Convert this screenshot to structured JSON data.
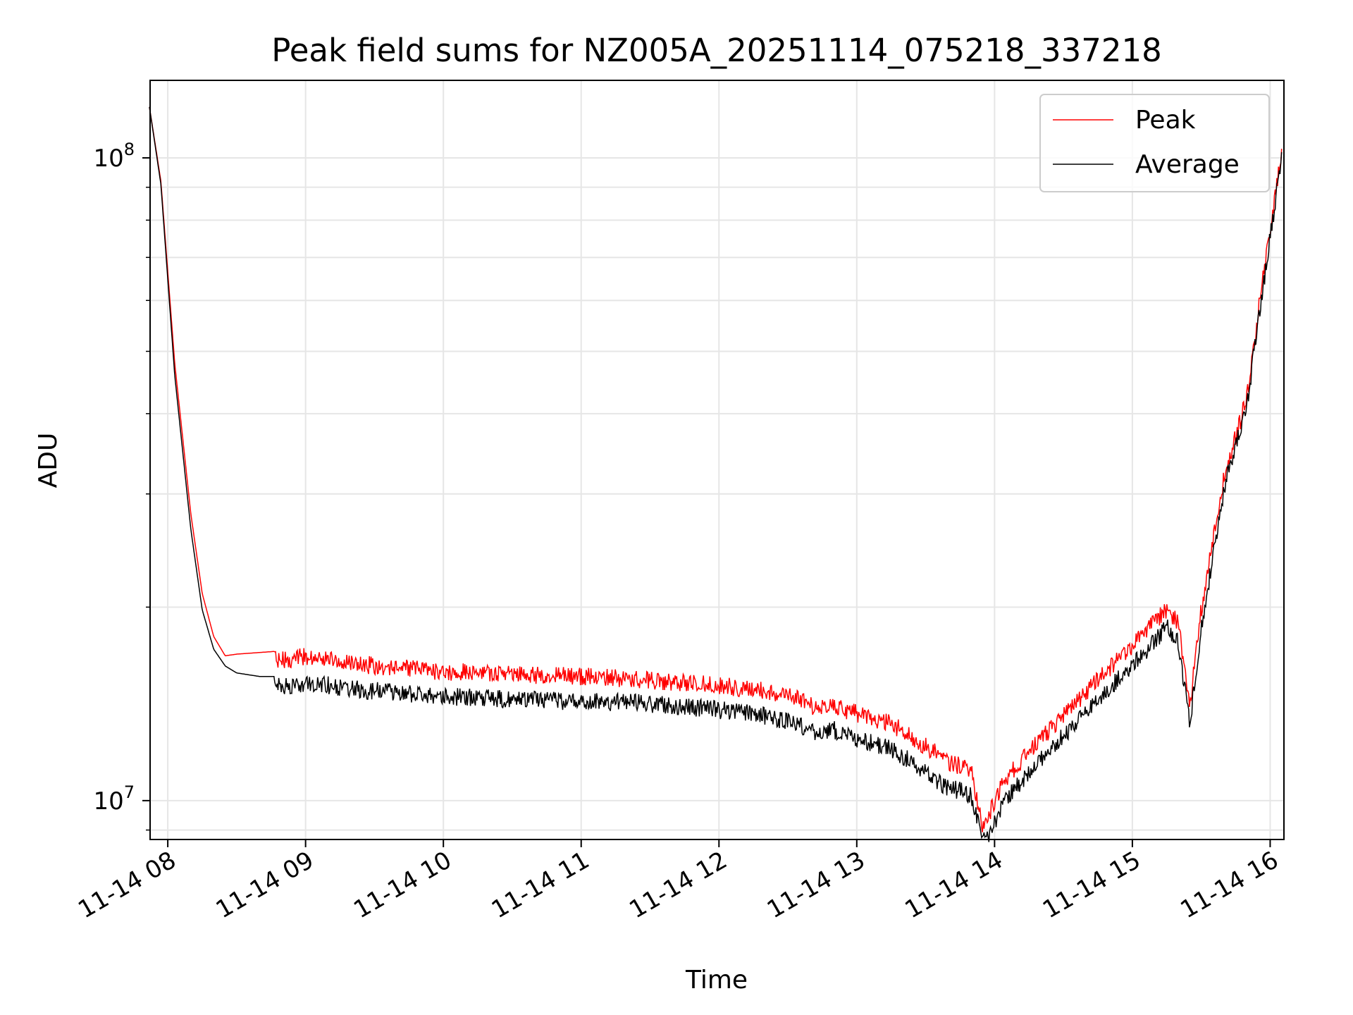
{
  "chart_data": {
    "type": "line",
    "title": "Peak field sums for NZ005A_20251114_075218_337218",
    "xlabel": "Time",
    "ylabel": "ADU",
    "yscale": "log",
    "xlim": [
      "2025-11-14T07:52:18",
      "2025-11-14T16:06:00"
    ],
    "ylim": [
      8700000,
      132000000
    ],
    "grid": true,
    "legend_position": "top-right",
    "x_ticks": [
      {
        "value": "2025-11-14T08:00",
        "label": "11-14 08"
      },
      {
        "value": "2025-11-14T09:00",
        "label": "11-14 09"
      },
      {
        "value": "2025-11-14T10:00",
        "label": "11-14 10"
      },
      {
        "value": "2025-11-14T11:00",
        "label": "11-14 11"
      },
      {
        "value": "2025-11-14T12:00",
        "label": "11-14 12"
      },
      {
        "value": "2025-11-14T13:00",
        "label": "11-14 13"
      },
      {
        "value": "2025-11-14T14:00",
        "label": "11-14 14"
      },
      {
        "value": "2025-11-14T15:00",
        "label": "11-14 15"
      },
      {
        "value": "2025-11-14T16:00",
        "label": "11-14 16"
      }
    ],
    "y_ticks": [
      {
        "value": 10000000,
        "base": "10",
        "exp": "7"
      },
      {
        "value": 100000000,
        "base": "10",
        "exp": "8"
      }
    ],
    "series": [
      {
        "name": "Peak",
        "color": "#ff0000",
        "x": [
          "2025-11-14T07:52",
          "2025-11-14T07:57",
          "2025-11-14T08:03",
          "2025-11-14T08:10",
          "2025-11-14T08:15",
          "2025-11-14T08:20",
          "2025-11-14T08:25",
          "2025-11-14T08:30",
          "2025-11-14T08:40",
          "2025-11-14T08:50",
          "2025-11-14T09:00",
          "2025-11-14T09:10",
          "2025-11-14T09:20",
          "2025-11-14T09:40",
          "2025-11-14T10:00",
          "2025-11-14T10:20",
          "2025-11-14T10:40",
          "2025-11-14T11:00",
          "2025-11-14T11:20",
          "2025-11-14T11:40",
          "2025-11-14T12:00",
          "2025-11-14T12:20",
          "2025-11-14T12:35",
          "2025-11-14T12:40",
          "2025-11-14T12:50",
          "2025-11-14T13:00",
          "2025-11-14T13:15",
          "2025-11-14T13:25",
          "2025-11-14T13:35",
          "2025-11-14T13:40",
          "2025-11-14T13:45",
          "2025-11-14T13:50",
          "2025-11-14T13:55",
          "2025-11-14T13:58",
          "2025-11-14T14:03",
          "2025-11-14T14:08",
          "2025-11-14T14:15",
          "2025-11-14T14:25",
          "2025-11-14T14:35",
          "2025-11-14T14:45",
          "2025-11-14T14:55",
          "2025-11-14T15:05",
          "2025-11-14T15:15",
          "2025-11-14T15:20",
          "2025-11-14T15:25",
          "2025-11-14T15:30",
          "2025-11-14T15:35",
          "2025-11-14T15:40",
          "2025-11-14T15:45",
          "2025-11-14T15:50",
          "2025-11-14T15:55",
          "2025-11-14T16:00",
          "2025-11-14T16:05"
        ],
        "values": [
          120000000,
          92000000,
          48000000,
          28000000,
          21000000,
          18000000,
          16800000,
          16900000,
          17000000,
          17100000,
          17300000,
          17200000,
          16900000,
          16600000,
          16400000,
          16300000,
          16200000,
          16100000,
          16000000,
          15800000,
          15600000,
          15300000,
          14900000,
          14500000,
          14500000,
          14100000,
          13600000,
          12900000,
          12200000,
          11800000,
          11700000,
          11400000,
          9400000,
          9900000,
          10900000,
          11500000,
          12300000,
          13400000,
          14600000,
          15900000,
          17300000,
          18800000,
          20500000,
          19500000,
          14500000,
          20500000,
          26000000,
          33000000,
          38000000,
          44000000,
          60000000,
          80000000,
          105000000
        ]
      },
      {
        "name": "Average",
        "color": "#000000",
        "x": [
          "2025-11-14T07:52",
          "2025-11-14T07:57",
          "2025-11-14T08:03",
          "2025-11-14T08:10",
          "2025-11-14T08:15",
          "2025-11-14T08:20",
          "2025-11-14T08:25",
          "2025-11-14T08:30",
          "2025-11-14T08:40",
          "2025-11-14T08:50",
          "2025-11-14T09:00",
          "2025-11-14T09:10",
          "2025-11-14T09:20",
          "2025-11-14T09:40",
          "2025-11-14T10:00",
          "2025-11-14T10:20",
          "2025-11-14T10:40",
          "2025-11-14T11:00",
          "2025-11-14T11:20",
          "2025-11-14T11:40",
          "2025-11-14T12:00",
          "2025-11-14T12:20",
          "2025-11-14T12:35",
          "2025-11-14T12:40",
          "2025-11-14T12:50",
          "2025-11-14T13:00",
          "2025-11-14T13:15",
          "2025-11-14T13:25",
          "2025-11-14T13:35",
          "2025-11-14T13:40",
          "2025-11-14T13:45",
          "2025-11-14T13:50",
          "2025-11-14T13:55",
          "2025-11-14T13:58",
          "2025-11-14T14:03",
          "2025-11-14T14:08",
          "2025-11-14T14:15",
          "2025-11-14T14:25",
          "2025-11-14T14:35",
          "2025-11-14T14:45",
          "2025-11-14T14:55",
          "2025-11-14T15:05",
          "2025-11-14T15:15",
          "2025-11-14T15:20",
          "2025-11-14T15:25",
          "2025-11-14T15:30",
          "2025-11-14T15:35",
          "2025-11-14T15:40",
          "2025-11-14T15:45",
          "2025-11-14T15:50",
          "2025-11-14T15:55",
          "2025-11-14T16:00",
          "2025-11-14T16:05"
        ],
        "values": [
          120000000,
          91000000,
          46000000,
          26500000,
          19800000,
          17200000,
          16200000,
          15800000,
          15600000,
          15600000,
          15700000,
          15600000,
          15400000,
          15200000,
          15000000,
          14900000,
          14800000,
          14700000,
          14700000,
          14500000,
          14300000,
          14000000,
          13600000,
          13200000,
          13300000,
          12900000,
          12400000,
          11800000,
          11100000,
          10800000,
          10700000,
          10500000,
          8900000,
          9200000,
          10100000,
          10700000,
          11400000,
          12500000,
          13600000,
          14800000,
          16100000,
          17500000,
          19200000,
          18300000,
          13500000,
          19200000,
          24800000,
          31800000,
          37000000,
          43000000,
          58000000,
          78000000,
          103000000
        ]
      }
    ]
  }
}
